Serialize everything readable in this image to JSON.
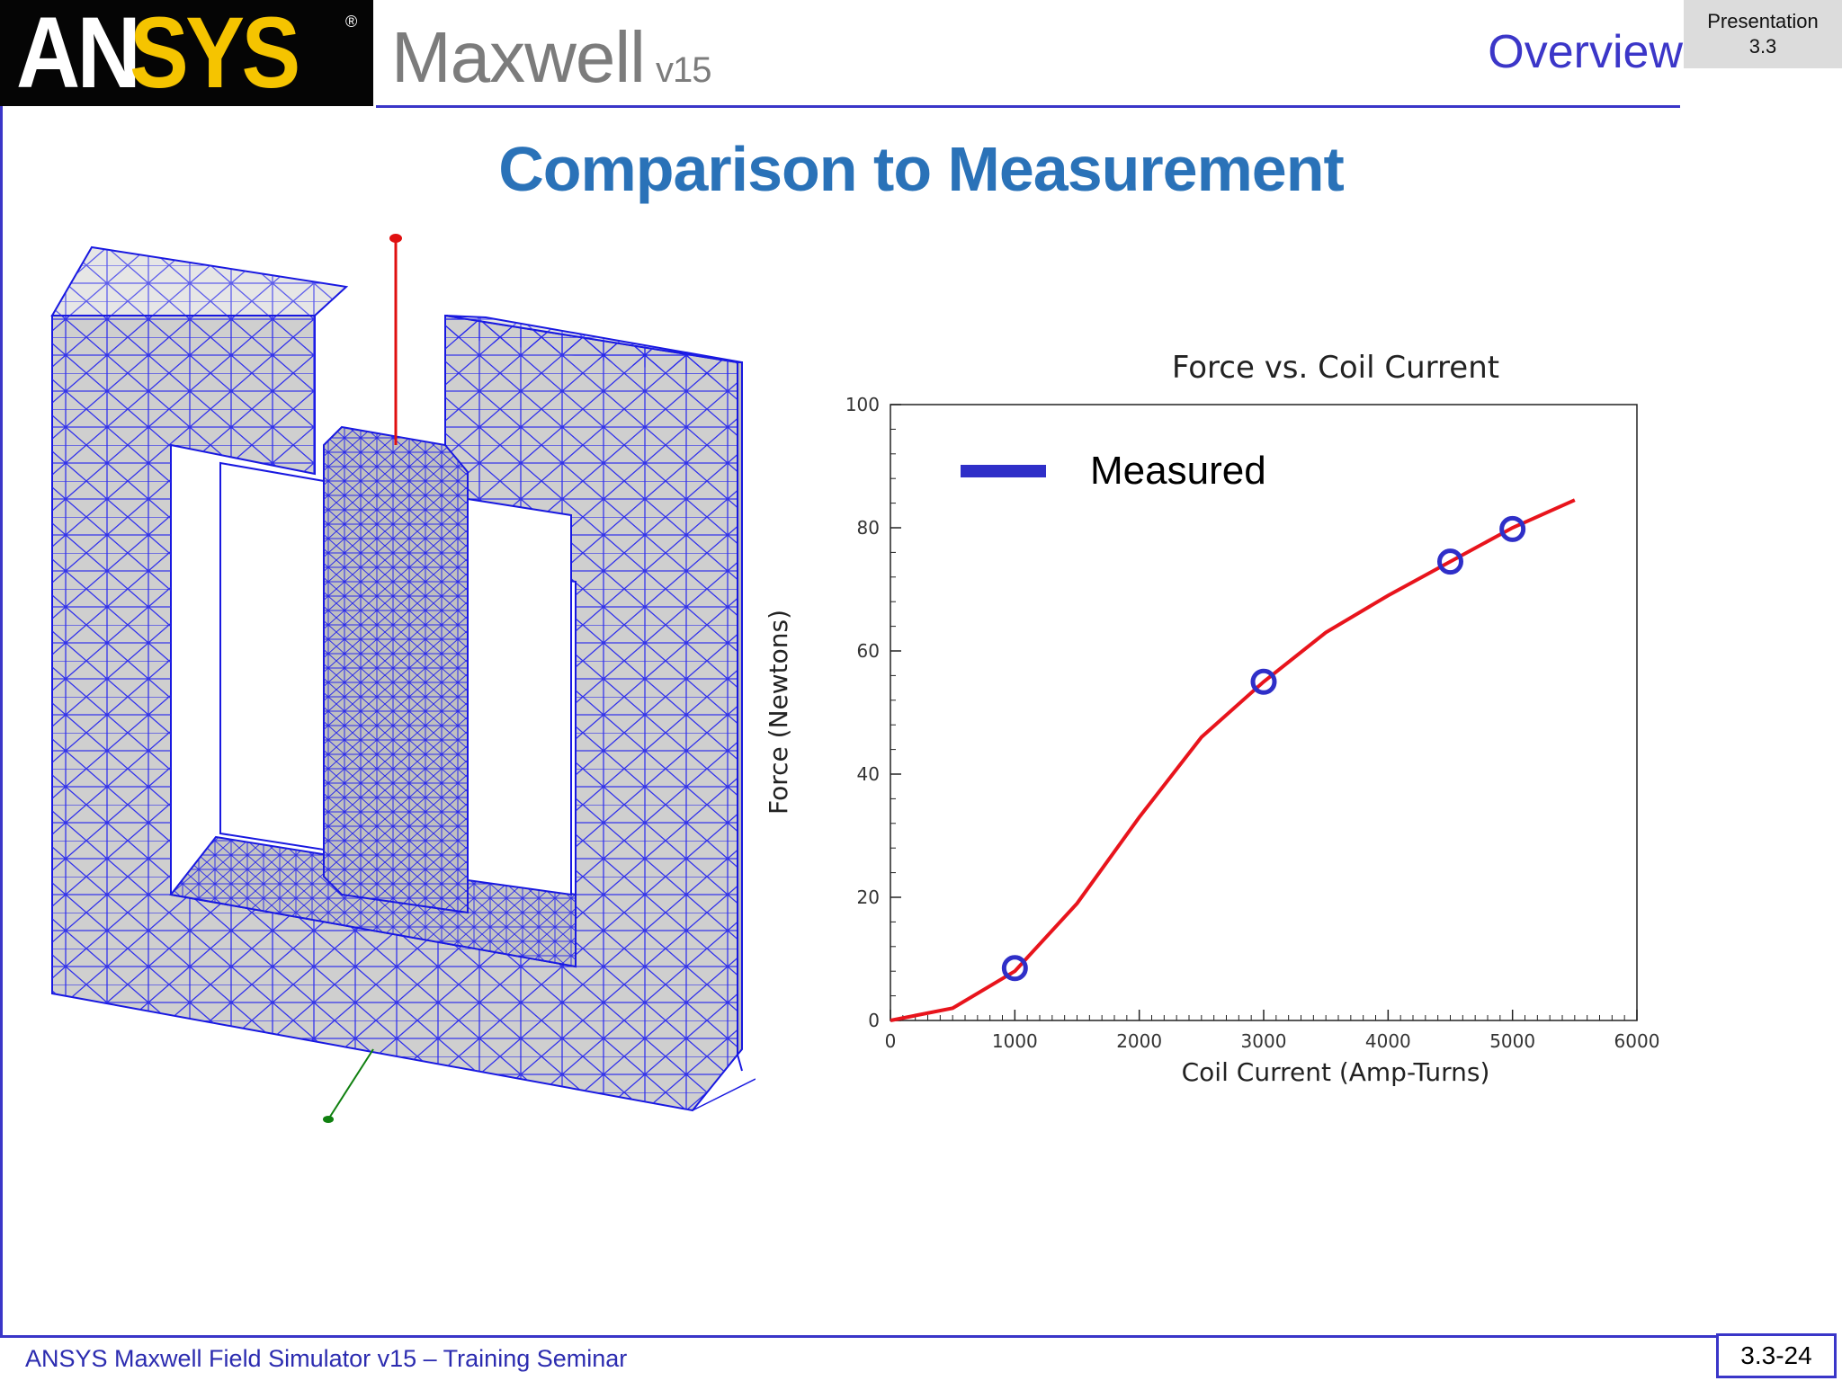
{
  "header": {
    "logo": "ANSYS",
    "product": "Maxwell",
    "version": "v15",
    "section": "Overview",
    "presentation_line1": "Presentation",
    "presentation_line2": "3.3"
  },
  "slide": {
    "title": "Comparison to Measurement"
  },
  "chart_data": {
    "type": "line",
    "title": "Force vs. Coil Current",
    "xlabel": "Coil Current (Amp-Turns)",
    "ylabel": "Force (Newtons)",
    "xlim": [
      0,
      6000
    ],
    "ylim": [
      0,
      100
    ],
    "xticks": [
      0,
      1000,
      2000,
      3000,
      4000,
      5000,
      6000
    ],
    "yticks": [
      0,
      20,
      40,
      60,
      80,
      100
    ],
    "grid": false,
    "legend_position": "top-left",
    "series": [
      {
        "kind": "line",
        "color": "#e8141c",
        "x": [
          0,
          500,
          1000,
          1500,
          2000,
          2500,
          3000,
          3500,
          4000,
          4500,
          5000,
          5500
        ],
        "y": [
          0,
          2,
          8,
          19,
          33,
          46,
          55,
          63,
          69,
          74.5,
          80,
          84.5
        ]
      },
      {
        "name": "Measured",
        "kind": "scatter",
        "color": "#2f2fc8",
        "x": [
          1000,
          3000,
          4500,
          5000
        ],
        "y": [
          8.5,
          55,
          74.5,
          79.8
        ]
      }
    ]
  },
  "footer": {
    "text": "ANSYS Maxwell Field Simulator v15 – Training Seminar",
    "page": "3.3-24"
  }
}
